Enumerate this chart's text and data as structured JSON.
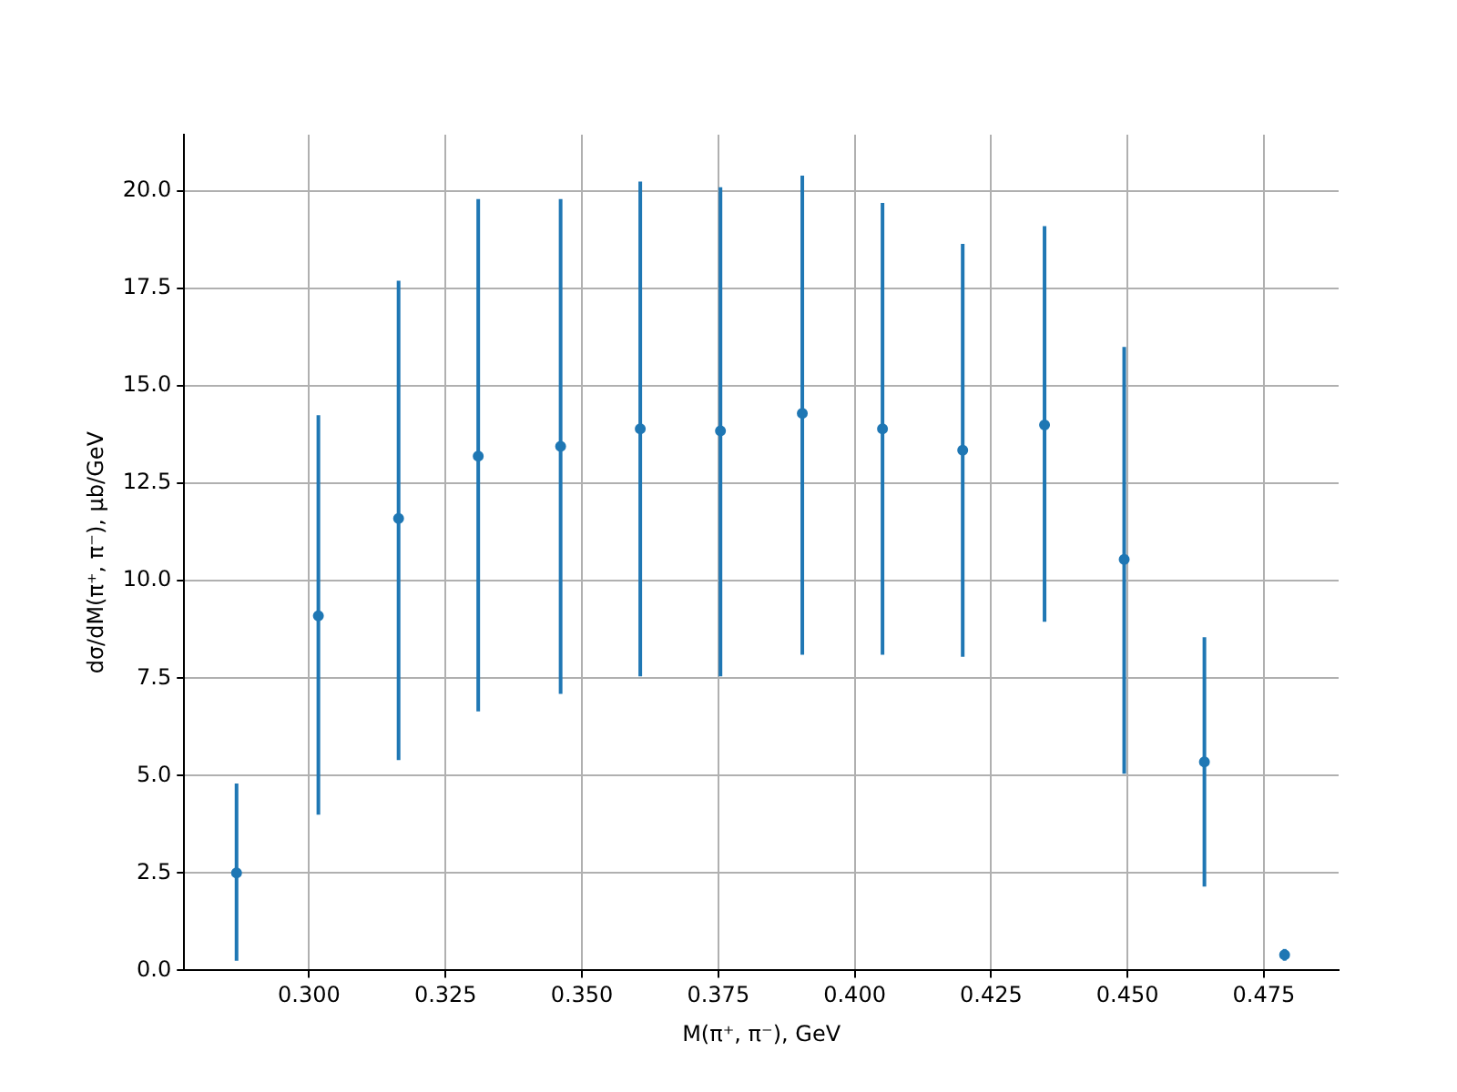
{
  "chart_data": {
    "type": "scatter",
    "xlabel": "M(π⁺, π⁻), GeV",
    "ylabel": "dσ/dM(π⁺, π⁻), μb/GeV",
    "x": [
      0.2867,
      0.3017,
      0.3164,
      0.331,
      0.3461,
      0.3607,
      0.3754,
      0.3904,
      0.4051,
      0.4198,
      0.4348,
      0.4494,
      0.4641,
      0.4788
    ],
    "series": [
      {
        "color": "#1f77b4",
        "values": [
          2.5,
          9.1,
          11.6,
          13.2,
          13.45,
          13.9,
          13.85,
          14.3,
          13.9,
          13.35,
          14.0,
          10.55,
          5.35,
          0.4
        ],
        "errors": [
          [
            0.25,
            4.8
          ],
          [
            4.0,
            14.25
          ],
          [
            5.4,
            17.7
          ],
          [
            6.65,
            19.8
          ],
          [
            7.1,
            19.8
          ],
          [
            7.55,
            20.25
          ],
          [
            7.55,
            20.1
          ],
          [
            8.1,
            20.4
          ],
          [
            8.1,
            19.7
          ],
          [
            8.05,
            18.65
          ],
          [
            8.95,
            19.1
          ],
          [
            5.05,
            16.0
          ],
          [
            2.15,
            8.55
          ],
          [
            0.25,
            0.55
          ]
        ]
      }
    ],
    "xlim": [
      0.2771,
      0.4887
    ],
    "ylim": [
      0,
      21.45
    ],
    "xticks": [
      {
        "value": 0.3,
        "label": "0.300"
      },
      {
        "value": 0.325,
        "label": "0.325"
      },
      {
        "value": 0.35,
        "label": "0.350"
      },
      {
        "value": 0.375,
        "label": "0.375"
      },
      {
        "value": 0.4,
        "label": "0.400"
      },
      {
        "value": 0.425,
        "label": "0.425"
      },
      {
        "value": 0.45,
        "label": "0.450"
      },
      {
        "value": 0.475,
        "label": "0.475"
      }
    ],
    "yticks": [
      {
        "value": 0,
        "label": "0.0"
      },
      {
        "value": 2.5,
        "label": "2.5"
      },
      {
        "value": 5,
        "label": "5.0"
      },
      {
        "value": 7.5,
        "label": "7.5"
      },
      {
        "value": 10,
        "label": "10.0"
      },
      {
        "value": 12.5,
        "label": "12.5"
      },
      {
        "value": 15,
        "label": "15.0"
      },
      {
        "value": 17.5,
        "label": "17.5"
      },
      {
        "value": 20,
        "label": "20.0"
      }
    ],
    "grid": true,
    "legend": false,
    "marker": "circle"
  }
}
